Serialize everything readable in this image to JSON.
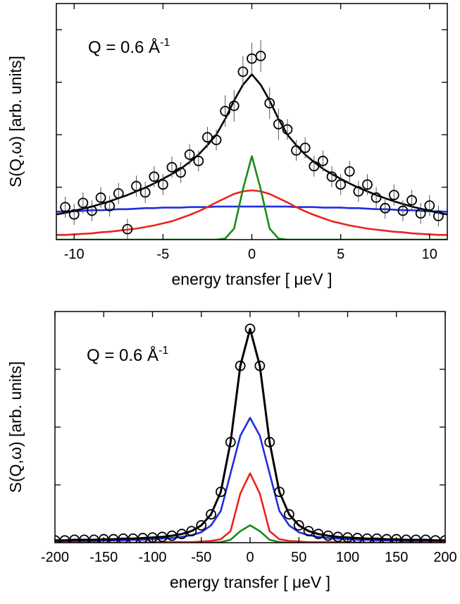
{
  "chart_data": [
    {
      "type": "line",
      "annotation": {
        "text": "Q = 0.6 Å",
        "sup": "-1"
      },
      "x_label": "energy transfer [ μeV ]",
      "y_label": "S(Q,ω)  [arb. units]",
      "xlim": [
        -11,
        11
      ],
      "xticks": [
        -10,
        -5,
        0,
        5,
        10
      ],
      "ylim": [
        0,
        4.5
      ],
      "yticks": [
        1,
        2,
        3,
        4
      ],
      "x": [
        -11,
        -10.5,
        -10,
        -9.5,
        -9,
        -8.5,
        -8,
        -7.5,
        -7,
        -6.5,
        -6,
        -5.5,
        -5,
        -4.5,
        -4,
        -3.5,
        -3,
        -2.5,
        -2,
        -1.5,
        -1,
        -0.5,
        0,
        0.5,
        1,
        1.5,
        2,
        2.5,
        3,
        3.5,
        4,
        4.5,
        5,
        5.5,
        6,
        6.5,
        7,
        7.5,
        8,
        8.5,
        9,
        9.5,
        10,
        10.5,
        11
      ],
      "series": [
        {
          "color": "#1f2ee0",
          "values": [
            0.53,
            0.54,
            0.54,
            0.55,
            0.56,
            0.56,
            0.57,
            0.58,
            0.58,
            0.59,
            0.6,
            0.6,
            0.61,
            0.61,
            0.61,
            0.62,
            0.62,
            0.62,
            0.63,
            0.63,
            0.63,
            0.63,
            0.63,
            0.63,
            0.63,
            0.63,
            0.63,
            0.62,
            0.62,
            0.62,
            0.61,
            0.61,
            0.61,
            0.6,
            0.6,
            0.59,
            0.58,
            0.58,
            0.57,
            0.56,
            0.56,
            0.55,
            0.54,
            0.54,
            0.53
          ]
        },
        {
          "color": "#e8251f",
          "values": [
            0.09,
            0.09,
            0.1,
            0.11,
            0.12,
            0.14,
            0.15,
            0.17,
            0.19,
            0.21,
            0.24,
            0.27,
            0.31,
            0.35,
            0.41,
            0.47,
            0.54,
            0.62,
            0.71,
            0.79,
            0.87,
            0.92,
            0.94,
            0.92,
            0.87,
            0.79,
            0.71,
            0.62,
            0.54,
            0.47,
            0.41,
            0.35,
            0.31,
            0.27,
            0.24,
            0.21,
            0.19,
            0.17,
            0.15,
            0.14,
            0.12,
            0.11,
            0.1,
            0.09,
            0.09
          ]
        },
        {
          "color": "#1a8a1a",
          "values": [
            0,
            0,
            0,
            0,
            0,
            0,
            0,
            0,
            0,
            0,
            0,
            0,
            0,
            0,
            0,
            0,
            0,
            0,
            0,
            0.02,
            0.21,
            0.96,
            1.59,
            0.96,
            0.21,
            0.02,
            0,
            0,
            0,
            0,
            0,
            0,
            0,
            0,
            0,
            0,
            0,
            0,
            0,
            0,
            0,
            0,
            0,
            0,
            0
          ]
        },
        {
          "color": "#000000",
          "values": [
            0.48,
            0.51,
            0.55,
            0.59,
            0.63,
            0.68,
            0.73,
            0.79,
            0.85,
            0.92,
            0.99,
            1.07,
            1.16,
            1.25,
            1.35,
            1.48,
            1.62,
            1.8,
            2.0,
            2.3,
            2.65,
            2.95,
            3.15,
            2.95,
            2.65,
            2.3,
            2.0,
            1.8,
            1.62,
            1.48,
            1.35,
            1.25,
            1.16,
            1.07,
            0.99,
            0.92,
            0.85,
            0.79,
            0.73,
            0.68,
            0.63,
            0.59,
            0.55,
            0.51,
            0.48
          ]
        },
        {
          "color": "#000000",
          "line": false,
          "marker": "circle",
          "x": [
            -10.5,
            -10,
            -9.5,
            -9,
            -8.5,
            -8,
            -7.5,
            -7,
            -6.5,
            -6,
            -5.5,
            -5,
            -4.5,
            -4,
            -3.5,
            -3,
            -2.5,
            -2,
            -1.5,
            -1,
            -0.5,
            0,
            0.5,
            1,
            1.5,
            2,
            2.5,
            3,
            3.5,
            4,
            4.5,
            5,
            5.5,
            6,
            6.5,
            7,
            7.5,
            8,
            8.5,
            9,
            9.5,
            10,
            10.5
          ],
          "values": [
            0.62,
            0.48,
            0.7,
            0.55,
            0.8,
            0.64,
            0.88,
            0.2,
            1.02,
            0.9,
            1.2,
            1.05,
            1.38,
            1.28,
            1.62,
            1.5,
            1.95,
            1.9,
            2.45,
            2.55,
            3.2,
            3.45,
            3.5,
            2.6,
            2.2,
            2.1,
            1.7,
            1.75,
            1.4,
            1.5,
            1.2,
            1.05,
            1.3,
            0.92,
            1.05,
            0.8,
            0.6,
            0.85,
            0.55,
            0.75,
            0.5,
            0.65,
            0.45
          ],
          "errors": [
            0.2,
            0.2,
            0.2,
            0.2,
            0.2,
            0.2,
            0.2,
            0.2,
            0.2,
            0.2,
            0.2,
            0.2,
            0.2,
            0.2,
            0.2,
            0.2,
            0.2,
            0.2,
            0.3,
            0.3,
            0.3,
            0.3,
            0.3,
            0.3,
            0.3,
            0.2,
            0.2,
            0.2,
            0.2,
            0.2,
            0.2,
            0.2,
            0.2,
            0.2,
            0.2,
            0.2,
            0.2,
            0.2,
            0.2,
            0.2,
            0.2,
            0.2,
            0.2
          ]
        }
      ]
    },
    {
      "type": "line",
      "annotation": {
        "text": "Q = 0.6 Å",
        "sup": "-1"
      },
      "x_label": "energy transfer [ μeV ]",
      "y_label": "S(Q,ω)  [arb. units]",
      "xlim": [
        -200,
        200
      ],
      "xticks": [
        -200,
        -150,
        -100,
        -50,
        0,
        50,
        100,
        150,
        200
      ],
      "ylim": [
        0,
        4
      ],
      "yticks": [
        1,
        2,
        3
      ],
      "x": [
        -200,
        -190,
        -180,
        -170,
        -160,
        -150,
        -140,
        -130,
        -120,
        -110,
        -100,
        -90,
        -80,
        -70,
        -60,
        -50,
        -40,
        -30,
        -20,
        -10,
        0,
        10,
        20,
        30,
        40,
        50,
        60,
        70,
        80,
        90,
        100,
        110,
        120,
        130,
        140,
        150,
        160,
        170,
        180,
        190,
        200
      ],
      "series": [
        {
          "color": "#1a8a1a",
          "values": [
            0,
            0,
            0,
            0,
            0,
            0,
            0,
            0,
            0,
            0,
            0,
            0,
            0,
            0,
            0,
            0,
            0,
            0.01,
            0.05,
            0.2,
            0.3,
            0.2,
            0.05,
            0.01,
            0,
            0,
            0,
            0,
            0,
            0,
            0,
            0,
            0,
            0,
            0,
            0,
            0,
            0,
            0,
            0,
            0
          ]
        },
        {
          "color": "#e8251f",
          "values": [
            0,
            0,
            0,
            0,
            0,
            0,
            0,
            0,
            0,
            0,
            0.01,
            0.01,
            0.01,
            0.01,
            0.01,
            0.02,
            0.03,
            0.06,
            0.2,
            0.85,
            1.2,
            0.85,
            0.2,
            0.06,
            0.03,
            0.02,
            0.01,
            0.01,
            0.01,
            0.01,
            0.01,
            0,
            0,
            0,
            0,
            0,
            0,
            0,
            0,
            0,
            0
          ]
        },
        {
          "color": "#1f2ee0",
          "values": [
            0.03,
            0.03,
            0.03,
            0.03,
            0.03,
            0.04,
            0.04,
            0.04,
            0.05,
            0.05,
            0.06,
            0.07,
            0.08,
            0.1,
            0.13,
            0.18,
            0.3,
            0.55,
            1.2,
            1.85,
            2.16,
            1.85,
            1.2,
            0.55,
            0.3,
            0.18,
            0.13,
            0.1,
            0.08,
            0.07,
            0.06,
            0.05,
            0.05,
            0.04,
            0.04,
            0.04,
            0.03,
            0.03,
            0.03,
            0.03,
            0.03
          ]
        },
        {
          "color": "#000000",
          "marker": "circle",
          "values": [
            0.04,
            0.04,
            0.05,
            0.05,
            0.05,
            0.06,
            0.06,
            0.07,
            0.07,
            0.08,
            0.09,
            0.1,
            0.12,
            0.15,
            0.2,
            0.3,
            0.49,
            0.88,
            1.74,
            3.06,
            3.7,
            3.06,
            1.74,
            0.88,
            0.49,
            0.3,
            0.2,
            0.15,
            0.12,
            0.1,
            0.09,
            0.08,
            0.07,
            0.07,
            0.06,
            0.06,
            0.05,
            0.05,
            0.05,
            0.04,
            0.04
          ]
        }
      ]
    }
  ]
}
